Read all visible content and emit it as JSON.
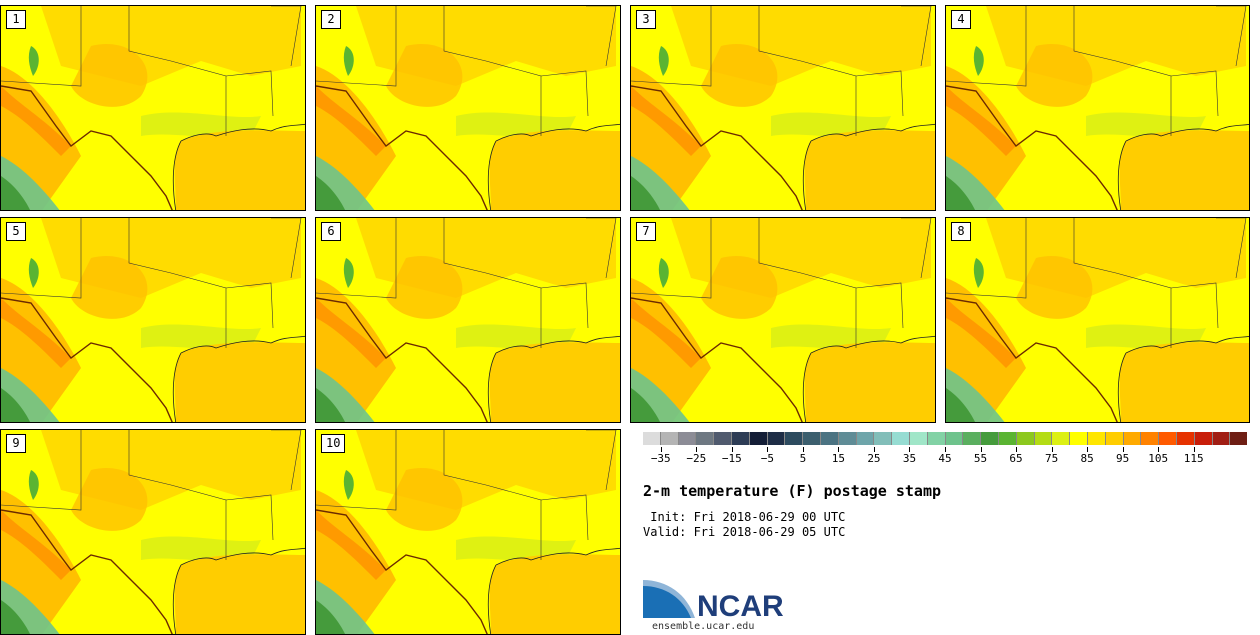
{
  "title": "2-m temperature (F) postage stamp",
  "init": " Init: Fri 2018-06-29 00 UTC",
  "valid": "Valid: Fri 2018-06-29 05 UTC",
  "members": [
    "1",
    "2",
    "3",
    "4",
    "5",
    "6",
    "7",
    "8",
    "9",
    "10"
  ],
  "colorbar": {
    "colors": [
      "#dcdcdc",
      "#b4b4b4",
      "#8c8c96",
      "#6e7882",
      "#505a6e",
      "#2d3c55",
      "#141e37",
      "#1e2d46",
      "#2d4b5f",
      "#3c5f6e",
      "#4b7382",
      "#5f8c96",
      "#6ea5aa",
      "#82beb9",
      "#96dcd2",
      "#a0e6c8",
      "#82d2a5",
      "#6ec38c",
      "#5aaf5f",
      "#459b3c",
      "#5ab432",
      "#8cc81e",
      "#b4dc14",
      "#dcf014",
      "#ffff00",
      "#ffe600",
      "#ffcd00",
      "#ffaa00",
      "#ff8200",
      "#ff5a00",
      "#e63200",
      "#c81e0a",
      "#a01e14",
      "#6e1e14"
    ],
    "tick_labels": [
      "-35",
      "-25",
      "-15",
      "-5",
      "5",
      "15",
      "25",
      "35",
      "45",
      "55",
      "65",
      "75",
      "85",
      "95",
      "105",
      "115"
    ]
  },
  "logo": {
    "text": "NCAR",
    "url": "ensemble.ucar.edu"
  }
}
